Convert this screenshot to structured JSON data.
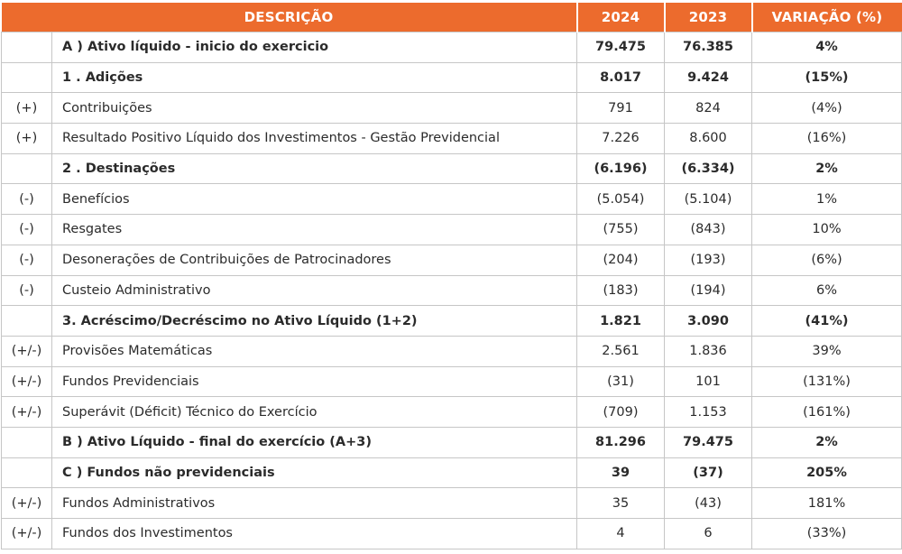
{
  "headers": {
    "descricao": "DESCRIÇÃO",
    "y2024": "2024",
    "y2023": "2023",
    "variacao": "VARIAÇÃO (%)"
  },
  "colors": {
    "header_bg": "#ec6b2d",
    "header_text": "#ffffff",
    "border": "#c6c6c6"
  },
  "rows": [
    {
      "sign": "",
      "label": "A ) Ativo líquido - inicio do exercicio",
      "v2024": "79.475",
      "v2023": "76.385",
      "var": "4%",
      "bold": true
    },
    {
      "sign": "",
      "label": "1 . Adições",
      "v2024": "8.017",
      "v2023": "9.424",
      "var": "(15%)",
      "bold": true
    },
    {
      "sign": "(+)",
      "label": "Contribuições",
      "v2024": "791",
      "v2023": "824",
      "var": "(4%)",
      "bold": false
    },
    {
      "sign": "(+)",
      "label": "Resultado Positivo Líquido dos Investimentos - Gestão Previdencial",
      "v2024": "7.226",
      "v2023": "8.600",
      "var": "(16%)",
      "bold": false
    },
    {
      "sign": "",
      "label": "2 . Destinações",
      "v2024": "(6.196)",
      "v2023": "(6.334)",
      "var": "2%",
      "bold": true
    },
    {
      "sign": "(-)",
      "label": "Benefícios",
      "v2024": "(5.054)",
      "v2023": "(5.104)",
      "var": "1%",
      "bold": false
    },
    {
      "sign": "(-)",
      "label": "Resgates",
      "v2024": "(755)",
      "v2023": "(843)",
      "var": "10%",
      "bold": false
    },
    {
      "sign": "(-)",
      "label": "Desonerações de Contribuições de Patrocinadores",
      "v2024": "(204)",
      "v2023": "(193)",
      "var": "(6%)",
      "bold": false
    },
    {
      "sign": "(-)",
      "label": "Custeio Administrativo",
      "v2024": "(183)",
      "v2023": "(194)",
      "var": "6%",
      "bold": false
    },
    {
      "sign": "",
      "label": "3. Acréscimo/Decréscimo no Ativo Líquido (1+2)",
      "v2024": "1.821",
      "v2023": "3.090",
      "var": "(41%)",
      "bold": true
    },
    {
      "sign": "(+/-)",
      "label": "Provisões Matemáticas",
      "v2024": "2.561",
      "v2023": "1.836",
      "var": "39%",
      "bold": false
    },
    {
      "sign": "(+/-)",
      "label": "Fundos Previdenciais",
      "v2024": "(31)",
      "v2023": "101",
      "var": "(131%)",
      "bold": false
    },
    {
      "sign": "(+/-)",
      "label": "Superávit (Déficit) Técnico do Exercício",
      "v2024": "(709)",
      "v2023": "1.153",
      "var": "(161%)",
      "bold": false
    },
    {
      "sign": "",
      "label": "B ) Ativo Líquido - final do exercício (A+3)",
      "v2024": "81.296",
      "v2023": "79.475",
      "var": "2%",
      "bold": true
    },
    {
      "sign": "",
      "label": "C ) Fundos não previdenciais",
      "v2024": "39",
      "v2023": "(37)",
      "var": "205%",
      "bold": true
    },
    {
      "sign": "(+/-)",
      "label": "Fundos Administrativos",
      "v2024": "35",
      "v2023": "(43)",
      "var": "181%",
      "bold": false
    },
    {
      "sign": "(+/-)",
      "label": "Fundos dos Investimentos",
      "v2024": "4",
      "v2023": "6",
      "var": "(33%)",
      "bold": false
    }
  ]
}
